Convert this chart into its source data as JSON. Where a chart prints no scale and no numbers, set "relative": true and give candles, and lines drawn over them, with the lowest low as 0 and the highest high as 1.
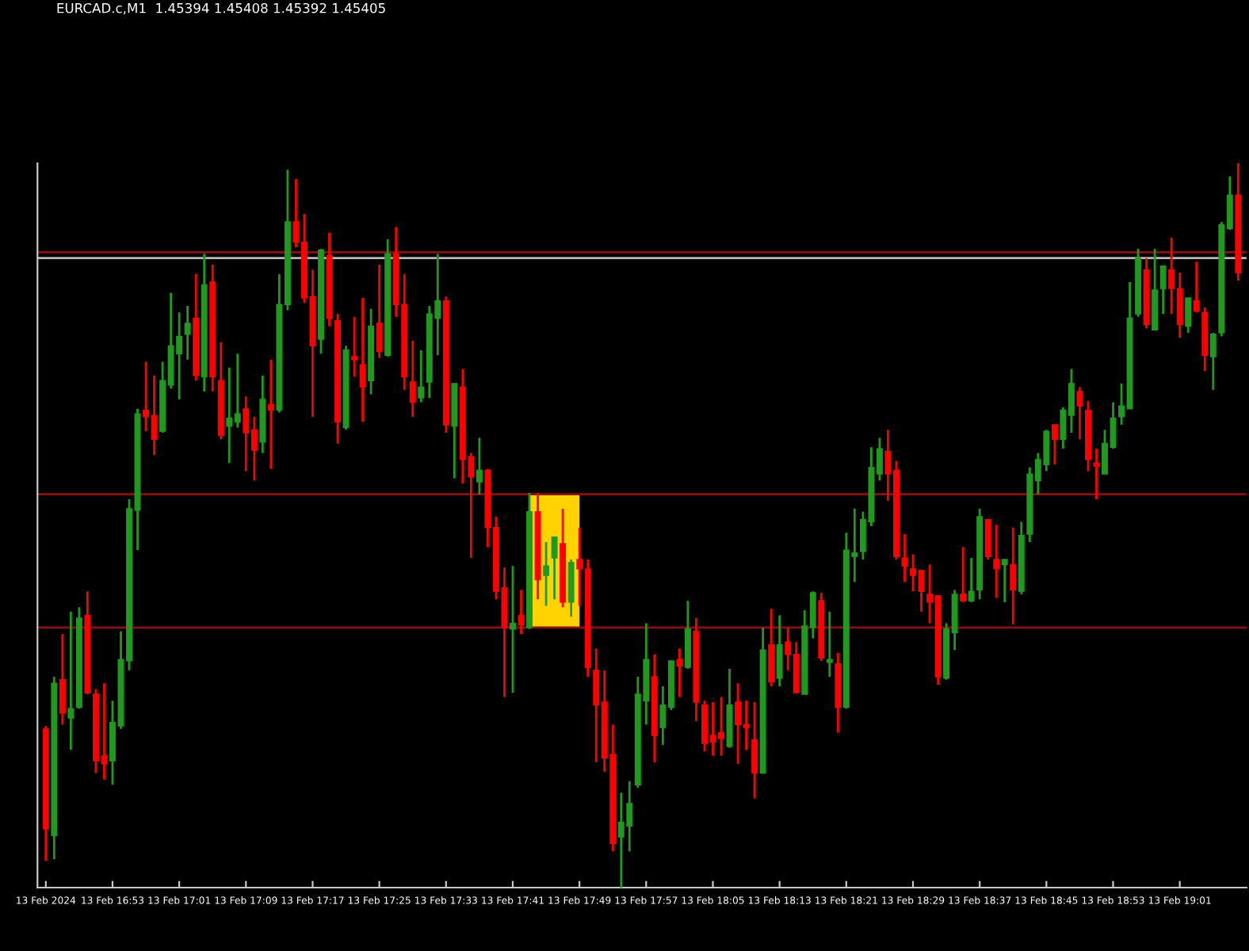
{
  "chart_data": {
    "type": "candlestick",
    "title": "EURCAD.c,M1  1.45394 1.45408 1.45392 1.45405",
    "relative": true,
    "tick_labels": "x",
    "xlim": [
      "2024-02-13T16:44",
      "2024-02-13T19:09"
    ],
    "x": [
      "2024-02-13T16:45",
      "2024-02-13T16:46",
      "2024-02-13T16:47",
      "2024-02-13T16:48",
      "2024-02-13T16:49",
      "2024-02-13T16:50",
      "2024-02-13T16:51",
      "2024-02-13T16:52",
      "2024-02-13T16:53",
      "2024-02-13T16:54",
      "2024-02-13T16:55",
      "2024-02-13T16:56",
      "2024-02-13T16:57",
      "2024-02-13T16:58",
      "2024-02-13T16:59",
      "2024-02-13T17:00",
      "2024-02-13T17:01",
      "2024-02-13T17:02",
      "2024-02-13T17:03",
      "2024-02-13T17:04",
      "2024-02-13T17:05",
      "2024-02-13T17:06",
      "2024-02-13T17:07",
      "2024-02-13T17:08",
      "2024-02-13T17:09",
      "2024-02-13T17:10",
      "2024-02-13T17:11",
      "2024-02-13T17:12",
      "2024-02-13T17:13",
      "2024-02-13T17:14",
      "2024-02-13T17:15",
      "2024-02-13T17:16",
      "2024-02-13T17:17",
      "2024-02-13T17:18",
      "2024-02-13T17:19",
      "2024-02-13T17:20",
      "2024-02-13T17:21",
      "2024-02-13T17:22",
      "2024-02-13T17:23",
      "2024-02-13T17:24",
      "2024-02-13T17:25",
      "2024-02-13T17:26",
      "2024-02-13T17:27",
      "2024-02-13T17:28",
      "2024-02-13T17:29",
      "2024-02-13T17:30",
      "2024-02-13T17:31",
      "2024-02-13T17:32",
      "2024-02-13T17:33",
      "2024-02-13T17:34",
      "2024-02-13T17:35",
      "2024-02-13T17:36",
      "2024-02-13T17:37",
      "2024-02-13T17:38",
      "2024-02-13T17:39",
      "2024-02-13T17:40",
      "2024-02-13T17:41",
      "2024-02-13T17:42",
      "2024-02-13T17:43",
      "2024-02-13T17:44",
      "2024-02-13T17:45",
      "2024-02-13T17:46",
      "2024-02-13T17:47",
      "2024-02-13T17:48",
      "2024-02-13T17:49",
      "2024-02-13T17:50",
      "2024-02-13T17:51",
      "2024-02-13T17:52",
      "2024-02-13T17:53",
      "2024-02-13T17:54",
      "2024-02-13T17:55",
      "2024-02-13T17:56",
      "2024-02-13T17:57",
      "2024-02-13T17:58",
      "2024-02-13T17:59",
      "2024-02-13T18:00",
      "2024-02-13T18:01",
      "2024-02-13T18:02",
      "2024-02-13T18:03",
      "2024-02-13T18:04",
      "2024-02-13T18:05",
      "2024-02-13T18:06",
      "2024-02-13T18:07",
      "2024-02-13T18:08",
      "2024-02-13T18:09",
      "2024-02-13T18:10",
      "2024-02-13T18:11",
      "2024-02-13T18:12",
      "2024-02-13T18:13",
      "2024-02-13T18:14",
      "2024-02-13T18:15",
      "2024-02-13T18:16",
      "2024-02-13T18:17",
      "2024-02-13T18:18",
      "2024-02-13T18:19",
      "2024-02-13T18:20",
      "2024-02-13T18:21",
      "2024-02-13T18:22",
      "2024-02-13T18:23",
      "2024-02-13T18:24",
      "2024-02-13T18:25",
      "2024-02-13T18:26",
      "2024-02-13T18:27",
      "2024-02-13T18:28",
      "2024-02-13T18:29",
      "2024-02-13T18:30",
      "2024-02-13T18:31",
      "2024-02-13T18:32",
      "2024-02-13T18:33",
      "2024-02-13T18:34",
      "2024-02-13T18:35",
      "2024-02-13T18:36",
      "2024-02-13T18:37",
      "2024-02-13T18:38",
      "2024-02-13T18:39",
      "2024-02-13T18:40",
      "2024-02-13T18:41",
      "2024-02-13T18:42",
      "2024-02-13T18:43",
      "2024-02-13T18:44",
      "2024-02-13T18:45",
      "2024-02-13T18:46",
      "2024-02-13T18:47",
      "2024-02-13T18:48",
      "2024-02-13T18:49",
      "2024-02-13T18:50",
      "2024-02-13T18:51",
      "2024-02-13T18:52",
      "2024-02-13T18:53",
      "2024-02-13T18:54",
      "2024-02-13T18:55",
      "2024-02-13T18:56",
      "2024-02-13T18:57",
      "2024-02-13T18:58",
      "2024-02-13T18:59",
      "2024-02-13T19:00",
      "2024-02-13T19:01",
      "2024-02-13T19:02",
      "2024-02-13T19:03",
      "2024-02-13T19:04",
      "2024-02-13T19:05",
      "2024-02-13T19:06",
      "2024-02-13T19:07",
      "2024-02-13T19:08"
    ],
    "ohlc": [
      [
        0.219,
        0.223,
        0.037,
        0.081
      ],
      [
        0.072,
        0.291,
        0.039,
        0.282
      ],
      [
        0.287,
        0.35,
        0.225,
        0.241
      ],
      [
        0.234,
        0.381,
        0.19,
        0.247
      ],
      [
        0.249,
        0.387,
        0.247,
        0.372
      ],
      [
        0.376,
        0.409,
        0.267,
        0.269
      ],
      [
        0.267,
        0.274,
        0.158,
        0.175
      ],
      [
        0.182,
        0.282,
        0.149,
        0.171
      ],
      [
        0.175,
        0.258,
        0.142,
        0.228
      ],
      [
        0.223,
        0.354,
        0.219,
        0.315
      ],
      [
        0.313,
        0.536,
        0.3,
        0.523
      ],
      [
        0.521,
        0.661,
        0.466,
        0.654
      ],
      [
        0.659,
        0.726,
        0.63,
        0.65
      ],
      [
        0.652,
        0.707,
        0.597,
        0.619
      ],
      [
        0.63,
        0.726,
        0.628,
        0.7
      ],
      [
        0.694,
        0.821,
        0.689,
        0.748
      ],
      [
        0.737,
        0.794,
        0.674,
        0.761
      ],
      [
        0.764,
        0.803,
        0.729,
        0.779
      ],
      [
        0.786,
        0.847,
        0.7,
        0.707
      ],
      [
        0.705,
        0.875,
        0.685,
        0.832
      ],
      [
        0.836,
        0.86,
        0.685,
        0.705
      ],
      [
        0.7,
        0.753,
        0.619,
        0.624
      ],
      [
        0.637,
        0.718,
        0.586,
        0.648
      ],
      [
        0.643,
        0.737,
        0.635,
        0.654
      ],
      [
        0.661,
        0.678,
        0.575,
        0.628
      ],
      [
        0.632,
        0.65,
        0.562,
        0.604
      ],
      [
        0.615,
        0.707,
        0.6,
        0.674
      ],
      [
        0.667,
        0.729,
        0.578,
        0.659
      ],
      [
        0.659,
        0.847,
        0.656,
        0.805
      ],
      [
        0.805,
        0.991,
        0.797,
        0.919
      ],
      [
        0.919,
        0.978,
        0.884,
        0.891
      ],
      [
        0.891,
        0.93,
        0.807,
        0.814
      ],
      [
        0.816,
        0.853,
        0.65,
        0.748
      ],
      [
        0.757,
        0.882,
        0.737,
        0.88
      ],
      [
        0.873,
        0.904,
        0.775,
        0.786
      ],
      [
        0.783,
        0.792,
        0.613,
        0.643
      ],
      [
        0.635,
        0.748,
        0.632,
        0.742
      ],
      [
        0.733,
        0.788,
        0.705,
        0.729
      ],
      [
        0.722,
        0.814,
        0.643,
        0.691
      ],
      [
        0.7,
        0.799,
        0.681,
        0.775
      ],
      [
        0.779,
        0.86,
        0.731,
        0.74
      ],
      [
        0.735,
        0.895,
        0.733,
        0.875
      ],
      [
        0.875,
        0.912,
        0.788,
        0.805
      ],
      [
        0.805,
        0.847,
        0.687,
        0.705
      ],
      [
        0.698,
        0.755,
        0.65,
        0.67
      ],
      [
        0.676,
        0.742,
        0.67,
        0.691
      ],
      [
        0.698,
        0.803,
        0.676,
        0.792
      ],
      [
        0.786,
        0.875,
        0.735,
        0.81
      ],
      [
        0.81,
        0.816,
        0.628,
        0.639
      ],
      [
        0.637,
        0.696,
        0.565,
        0.696
      ],
      [
        0.691,
        0.716,
        0.558,
        0.591
      ],
      [
        0.595,
        0.6,
        0.455,
        0.567
      ],
      [
        0.56,
        0.621,
        0.543,
        0.576
      ],
      [
        0.576,
        0.578,
        0.47,
        0.497
      ],
      [
        0.497,
        0.512,
        0.398,
        0.409
      ],
      [
        0.414,
        0.442,
        0.263,
        0.359
      ],
      [
        0.357,
        0.444,
        0.269,
        0.365
      ],
      [
        0.376,
        0.411,
        0.35,
        0.363
      ],
      [
        0.359,
        0.545,
        0.357,
        0.519
      ],
      [
        0.519,
        0.545,
        0.398,
        0.425
      ],
      [
        0.431,
        0.477,
        0.389,
        0.444
      ],
      [
        0.455,
        0.484,
        0.398,
        0.484
      ],
      [
        0.475,
        0.523,
        0.387,
        0.394
      ],
      [
        0.394,
        0.453,
        0.374,
        0.449
      ],
      [
        0.453,
        0.497,
        0.389,
        0.44
      ],
      [
        0.44,
        0.453,
        0.291,
        0.304
      ],
      [
        0.3,
        0.33,
        0.173,
        0.252
      ],
      [
        0.256,
        0.3,
        0.16,
        0.179
      ],
      [
        0.184,
        0.225,
        0.05,
        0.061
      ],
      [
        0.07,
        0.131,
        0,
        0.09
      ],
      [
        0.085,
        0.147,
        0.05,
        0.116
      ],
      [
        0.142,
        0.291,
        0.138,
        0.267
      ],
      [
        0.258,
        0.365,
        0.225,
        0.315
      ],
      [
        0.291,
        0.322,
        0.173,
        0.21
      ],
      [
        0.221,
        0.278,
        0.197,
        0.252
      ],
      [
        0.249,
        0.313,
        0.245,
        0.313
      ],
      [
        0.315,
        0.33,
        0.263,
        0.306
      ],
      [
        0.304,
        0.396,
        0.302,
        0.357
      ],
      [
        0.354,
        0.372,
        0.23,
        0.256
      ],
      [
        0.252,
        0.258,
        0.188,
        0.199
      ],
      [
        0.21,
        0.256,
        0.182,
        0.201
      ],
      [
        0.214,
        0.263,
        0.182,
        0.206
      ],
      [
        0.195,
        0.302,
        0.193,
        0.252
      ],
      [
        0.256,
        0.282,
        0.171,
        0.225
      ],
      [
        0.225,
        0.258,
        0.19,
        0.221
      ],
      [
        0.204,
        0.256,
        0.123,
        0.158
      ],
      [
        0.158,
        0.359,
        0.158,
        0.328
      ],
      [
        0.335,
        0.385,
        0.278,
        0.284
      ],
      [
        0.289,
        0.376,
        0.278,
        0.335
      ],
      [
        0.339,
        0.359,
        0.3,
        0.322
      ],
      [
        0.322,
        0.339,
        0.269,
        0.269
      ],
      [
        0.267,
        0.383,
        0.267,
        0.361
      ],
      [
        0.359,
        0.409,
        0.344,
        0.407
      ],
      [
        0.396,
        0.407,
        0.313,
        0.317
      ],
      [
        0.311,
        0.381,
        0.291,
        0.315
      ],
      [
        0.309,
        0.324,
        0.214,
        0.249
      ],
      [
        0.249,
        0.49,
        0.247,
        0.466
      ],
      [
        0.457,
        0.523,
        0.422,
        0.462
      ],
      [
        0.464,
        0.519,
        0.453,
        0.508
      ],
      [
        0.505,
        0.608,
        0.499,
        0.58
      ],
      [
        0.571,
        0.621,
        0.562,
        0.606
      ],
      [
        0.602,
        0.632,
        0.534,
        0.571
      ],
      [
        0.576,
        0.589,
        0.453,
        0.457
      ],
      [
        0.455,
        0.488,
        0.422,
        0.444
      ],
      [
        0.44,
        0.46,
        0.409,
        0.431
      ],
      [
        0.438,
        0.438,
        0.381,
        0.409
      ],
      [
        0.405,
        0.446,
        0.365,
        0.394
      ],
      [
        0.403,
        0.403,
        0.28,
        0.291
      ],
      [
        0.289,
        0.365,
        0.287,
        0.357
      ],
      [
        0.352,
        0.411,
        0.328,
        0.405
      ],
      [
        0.405,
        0.47,
        0.394,
        0.396
      ],
      [
        0.396,
        0.455,
        0.394,
        0.409
      ],
      [
        0.411,
        0.523,
        0.398,
        0.512
      ],
      [
        0.508,
        0.508,
        0.453,
        0.457
      ],
      [
        0.453,
        0.501,
        0.4,
        0.44
      ],
      [
        0.446,
        0.453,
        0.394,
        0.453
      ],
      [
        0.446,
        0.497,
        0.363,
        0.411
      ],
      [
        0.409,
        0.505,
        0.405,
        0.486
      ],
      [
        0.488,
        0.58,
        0.477,
        0.571
      ],
      [
        0.562,
        0.6,
        0.543,
        0.591
      ],
      [
        0.584,
        0.632,
        0.575,
        0.63
      ],
      [
        0.639,
        0.639,
        0.584,
        0.619
      ],
      [
        0.619,
        0.663,
        0.606,
        0.659
      ],
      [
        0.652,
        0.716,
        0.628,
        0.696
      ],
      [
        0.685,
        0.691,
        0.619,
        0.665
      ],
      [
        0.659,
        0.672,
        0.575,
        0.591
      ],
      [
        0.586,
        0.606,
        0.536,
        0.582
      ],
      [
        0.571,
        0.632,
        0.571,
        0.613
      ],
      [
        0.608,
        0.67,
        0.606,
        0.648
      ],
      [
        0.65,
        0.696,
        0.639,
        0.665
      ],
      [
        0.661,
        0.836,
        0.661,
        0.786
      ],
      [
        0.792,
        0.882,
        0.788,
        0.869
      ],
      [
        0.853,
        0.869,
        0.772,
        0.777
      ],
      [
        0.77,
        0.882,
        0.77,
        0.825
      ],
      [
        0.827,
        0.858,
        0.792,
        0.858
      ],
      [
        0.853,
        0.897,
        0.792,
        0.827
      ],
      [
        0.827,
        0.849,
        0.759,
        0.777
      ],
      [
        0.775,
        0.814,
        0.766,
        0.814
      ],
      [
        0.81,
        0.864,
        0.794,
        0.796
      ],
      [
        0.794,
        0.801,
        0.713,
        0.735
      ],
      [
        0.733,
        0.766,
        0.687,
        0.764
      ],
      [
        0.766,
        0.919,
        0.761,
        0.915
      ],
      [
        0.91,
        0.982,
        0.908,
        0.956
      ],
      [
        0.956,
        1,
        0.838,
        0.849
      ]
    ],
    "colors": [
      "#ff0000",
      "#1f9a1f",
      "#ff0000",
      "#1f9a1f",
      "#1f9a1f",
      "#ff0000",
      "#ff0000",
      "#ff0000",
      "#1f9a1f",
      "#1f9a1f",
      "#1f9a1f",
      "#1f9a1f",
      "#ff0000",
      "#ff0000",
      "#1f9a1f",
      "#1f9a1f",
      "#1f9a1f",
      "#1f9a1f",
      "#ff0000",
      "#1f9a1f",
      "#ff0000",
      "#ff0000",
      "#1f9a1f",
      "#1f9a1f",
      "#ff0000",
      "#ff0000",
      "#1f9a1f",
      "#ff0000",
      "#1f9a1f",
      "#1f9a1f",
      "#ff0000",
      "#ff0000",
      "#ff0000",
      "#1f9a1f",
      "#ff0000",
      "#ff0000",
      "#1f9a1f",
      "#ff0000",
      "#ff0000",
      "#1f9a1f",
      "#ff0000",
      "#1f9a1f",
      "#ff0000",
      "#ff0000",
      "#ff0000",
      "#1f9a1f",
      "#1f9a1f",
      "#1f9a1f",
      "#ff0000",
      "#1f9a1f",
      "#ff0000",
      "#ff0000",
      "#1f9a1f",
      "#ff0000",
      "#ff0000",
      "#ff0000",
      "#1f9a1f",
      "#ff0000",
      "#1f9a1f",
      "#ff0000",
      "#1f9a1f",
      "#1f9a1f",
      "#ff0000",
      "#1f9a1f",
      "#ff0000",
      "#ff0000",
      "#ff0000",
      "#ff0000",
      "#ff0000",
      "#1f9a1f",
      "#1f9a1f",
      "#1f9a1f",
      "#1f9a1f",
      "#ff0000",
      "#1f9a1f",
      "#1f9a1f",
      "#ff0000",
      "#1f9a1f",
      "#ff0000",
      "#ff0000",
      "#ff0000",
      "#ff0000",
      "#1f9a1f",
      "#ff0000",
      "#ff0000",
      "#ff0000",
      "#1f9a1f",
      "#ff0000",
      "#1f9a1f",
      "#ff0000",
      "#ff0000",
      "#1f9a1f",
      "#1f9a1f",
      "#ff0000",
      "#1f9a1f",
      "#ff0000",
      "#1f9a1f",
      "#1f9a1f",
      "#1f9a1f",
      "#1f9a1f",
      "#1f9a1f",
      "#ff0000",
      "#ff0000",
      "#ff0000",
      "#ff0000",
      "#ff0000",
      "#ff0000",
      "#ff0000",
      "#1f9a1f",
      "#1f9a1f",
      "#ff0000",
      "#1f9a1f",
      "#1f9a1f",
      "#ff0000",
      "#ff0000",
      "#1f9a1f",
      "#ff0000",
      "#1f9a1f",
      "#1f9a1f",
      "#1f9a1f",
      "#1f9a1f",
      "#ff0000",
      "#1f9a1f",
      "#1f9a1f",
      "#ff0000",
      "#ff0000",
      "#ff0000",
      "#1f9a1f",
      "#1f9a1f",
      "#1f9a1f",
      "#1f9a1f",
      "#1f9a1f",
      "#ff0000",
      "#1f9a1f",
      "#1f9a1f",
      "#ff0000",
      "#ff0000",
      "#1f9a1f",
      "#ff0000",
      "#ff0000",
      "#1f9a1f",
      "#1f9a1f",
      "#1f9a1f",
      "#ff0000"
    ],
    "xticks": [
      {
        "value": "2024-02-13T16:45",
        "label": "13 Feb 2024"
      },
      {
        "value": "2024-02-13T16:53",
        "label": "13 Feb 16:53"
      },
      {
        "value": "2024-02-13T17:01",
        "label": "13 Feb 17:01"
      },
      {
        "value": "2024-02-13T17:09",
        "label": "13 Feb 17:09"
      },
      {
        "value": "2024-02-13T17:17",
        "label": "13 Feb 17:17"
      },
      {
        "value": "2024-02-13T17:25",
        "label": "13 Feb 17:25"
      },
      {
        "value": "2024-02-13T17:33",
        "label": "13 Feb 17:33"
      },
      {
        "value": "2024-02-13T17:41",
        "label": "13 Feb 17:41"
      },
      {
        "value": "2024-02-13T17:49",
        "label": "13 Feb 17:49"
      },
      {
        "value": "2024-02-13T17:57",
        "label": "13 Feb 17:57"
      },
      {
        "value": "2024-02-13T18:05",
        "label": "13 Feb 18:05"
      },
      {
        "value": "2024-02-13T18:13",
        "label": "13 Feb 18:13"
      },
      {
        "value": "2024-02-13T18:21",
        "label": "13 Feb 18:21"
      },
      {
        "value": "2024-02-13T18:29",
        "label": "13 Feb 18:29"
      },
      {
        "value": "2024-02-13T18:37",
        "label": "13 Feb 18:37"
      },
      {
        "value": "2024-02-13T18:45",
        "label": "13 Feb 18:45"
      },
      {
        "value": "2024-02-13T18:53",
        "label": "13 Feb 18:53"
      },
      {
        "value": "2024-02-13T19:01",
        "label": "13 Feb 19:01"
      }
    ],
    "ref_lines": [
      {
        "axis": "y",
        "value": 0.877,
        "color": "#8b1010"
      },
      {
        "axis": "y",
        "value": 0.869,
        "color": "#b8b8b8"
      },
      {
        "axis": "y",
        "value": 0.543,
        "color": "#8b1010"
      },
      {
        "axis": "y",
        "value": 0.359,
        "color": "#8b1010"
      }
    ],
    "bands": [
      {
        "axis": "x",
        "from": "2024-02-13T17:43",
        "to": "2024-02-13T17:49",
        "color": "#ffd200"
      }
    ]
  }
}
